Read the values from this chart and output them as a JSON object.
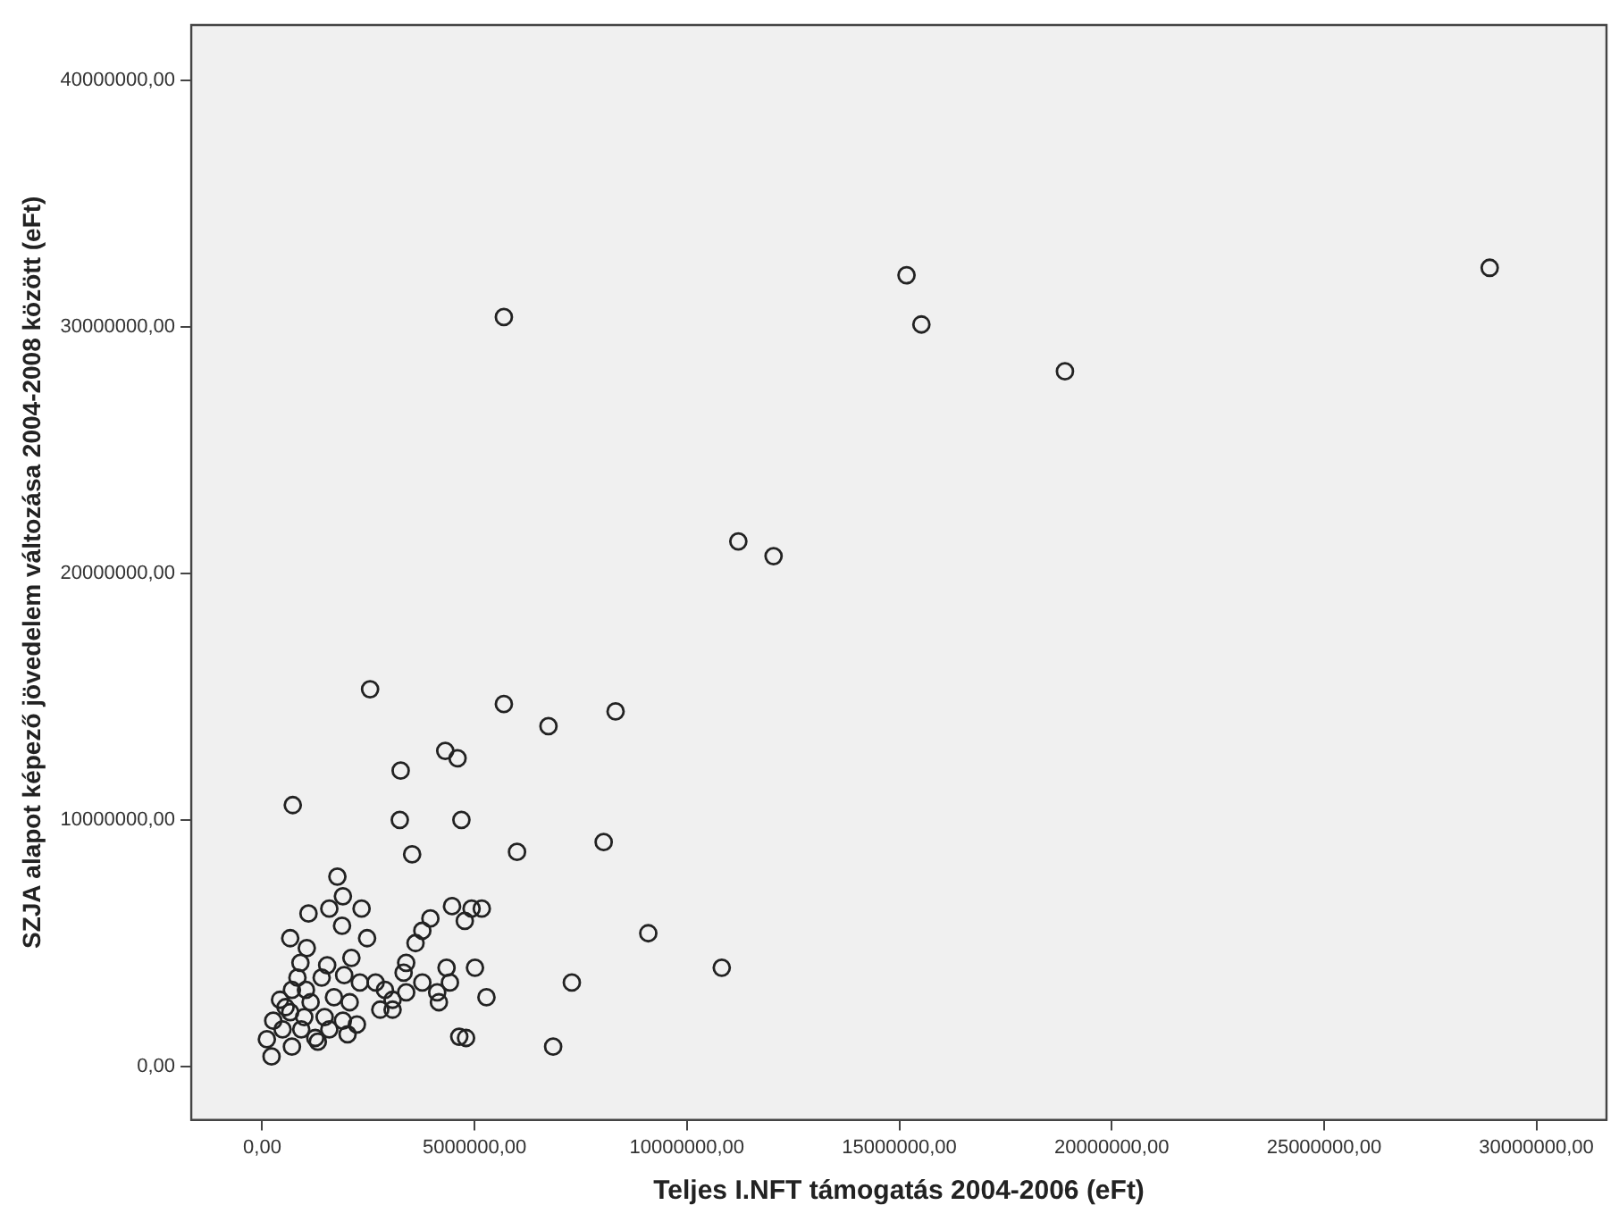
{
  "chart_data": {
    "type": "scatter",
    "xlabel": "Teljes I.NFT támogatás 2004-2006 (eFt)",
    "ylabel": "SZJA alapot képező jövedelem változása 2004-2008 között (eFt)",
    "xlim": [
      -1670000,
      31650000
    ],
    "ylim": [
      -2170000,
      42250000
    ],
    "xticks": [
      {
        "value": 0,
        "label": "0,00"
      },
      {
        "value": 5000000,
        "label": "5000000,00"
      },
      {
        "value": 10000000,
        "label": "10000000,00"
      },
      {
        "value": 15000000,
        "label": "15000000,00"
      },
      {
        "value": 20000000,
        "label": "20000000,00"
      },
      {
        "value": 25000000,
        "label": "25000000,00"
      },
      {
        "value": 30000000,
        "label": "30000000,00"
      }
    ],
    "yticks": [
      {
        "value": 0,
        "label": "0,00"
      },
      {
        "value": 10000000,
        "label": "10000000,00"
      },
      {
        "value": 20000000,
        "label": "20000000,00"
      },
      {
        "value": 30000000,
        "label": "30000000,00"
      },
      {
        "value": 40000000,
        "label": "40000000,00"
      }
    ],
    "marker": "circle",
    "grid": false,
    "legend": false,
    "series": [
      {
        "color": "#222222",
        "x": [
          28900000,
          15170000,
          15520000,
          18900000,
          5690000,
          11210000,
          12040000,
          2540000,
          5690000,
          8320000,
          6740000,
          4310000,
          4600000,
          3260000,
          720000,
          3240000,
          4690000,
          8040000,
          6000000,
          3530000,
          9090000,
          10820000,
          7290000,
          6850000,
          5280000,
          4640000,
          4800000,
          5010000,
          4340000,
          4420000,
          4160000,
          4120000,
          4470000,
          4930000,
          5170000,
          4770000,
          3960000,
          3770000,
          3610000,
          3390000,
          3330000,
          3770000,
          3390000,
          3070000,
          3070000,
          2780000,
          2890000,
          2670000,
          1770000,
          1900000,
          2340000,
          1580000,
          1090000,
          1880000,
          2470000,
          660000,
          1050000,
          900000,
          2100000,
          1530000,
          1400000,
          1930000,
          830000,
          2300000,
          420000,
          700000,
          1140000,
          1690000,
          2060000,
          660000,
          990000,
          1470000,
          1900000,
          2230000,
          260000,
          480000,
          920000,
          1310000,
          700000,
          2010000,
          110000,
          220000,
          1580000,
          550000,
          1250000,
          1030000
        ],
        "values": [
          32400000,
          32100000,
          30100000,
          28200000,
          30400000,
          21300000,
          20700000,
          15300000,
          14700000,
          14400000,
          13800000,
          12800000,
          12500000,
          12000000,
          10600000,
          10000000,
          10000000,
          9100000,
          8700000,
          8600000,
          5400000,
          4000000,
          3400000,
          800000,
          2800000,
          1200000,
          1150000,
          4000000,
          4000000,
          3400000,
          2600000,
          3000000,
          6500000,
          6400000,
          6400000,
          5900000,
          6000000,
          5500000,
          5000000,
          4200000,
          3800000,
          3400000,
          3000000,
          2700000,
          2300000,
          2300000,
          3100000,
          3400000,
          7700000,
          6900000,
          6400000,
          6400000,
          6200000,
          5700000,
          5200000,
          5200000,
          4800000,
          4200000,
          4400000,
          4100000,
          3600000,
          3700000,
          3600000,
          3400000,
          2700000,
          3100000,
          2600000,
          2800000,
          2600000,
          2200000,
          2000000,
          2000000,
          1850000,
          1700000,
          1850000,
          1500000,
          1500000,
          1000000,
          800000,
          1300000,
          1100000,
          400000,
          1500000,
          2400000,
          1150000,
          3100000
        ]
      }
    ]
  }
}
